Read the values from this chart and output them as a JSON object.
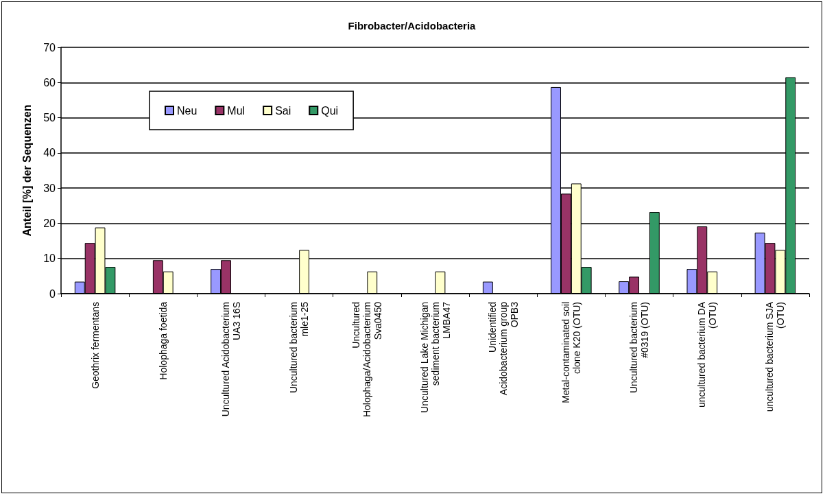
{
  "chart_data": {
    "type": "bar",
    "title": "Fibrobacter/Acidobacteria",
    "ylabel": "Anteil [%] der Sequenzen",
    "categories": [
      "Geothrix fermentans",
      "Holophaga foetida",
      "Uncultured Acidobacterium\nUA3 16S",
      "Uncultured bacterium\nmle1-25",
      "Uncultured\nHolophaga/Acidobacterium\nSva0450",
      "Uncultured Lake Michigan\nsediment bacterium\nLMBA47",
      "Unidentified\nAcidobacterium group\nOPB3",
      "Metal-contaminated soil\nclone K20 (OTU)",
      "Uncultured bacterium\n#0319 (OTU)",
      "uncultured bacterium DA\n(OTU)",
      "uncultured bacterium SJA\n(OTU)"
    ],
    "series": [
      {
        "name": "Neu",
        "color": "#9999ff",
        "values": [
          3.4,
          null,
          7.0,
          null,
          null,
          null,
          3.4,
          58.7,
          3.5,
          7.0,
          17.3
        ]
      },
      {
        "name": "Mul",
        "color": "#993366",
        "values": [
          14.4,
          9.5,
          9.5,
          null,
          null,
          null,
          null,
          28.4,
          4.8,
          19.1,
          14.4
        ]
      },
      {
        "name": "Sai",
        "color": "#ffffcc",
        "values": [
          18.8,
          6.3,
          null,
          12.4,
          6.3,
          6.3,
          null,
          31.3,
          null,
          6.3,
          12.4
        ]
      },
      {
        "name": "Qui",
        "color": "#339966",
        "values": [
          7.6,
          null,
          null,
          null,
          null,
          null,
          null,
          7.6,
          23.2,
          null,
          61.5
        ]
      }
    ],
    "ylim": [
      0,
      70
    ],
    "yticks": [
      0,
      10,
      20,
      30,
      40,
      50,
      60,
      70
    ],
    "grid": "y",
    "legend": "top left"
  }
}
